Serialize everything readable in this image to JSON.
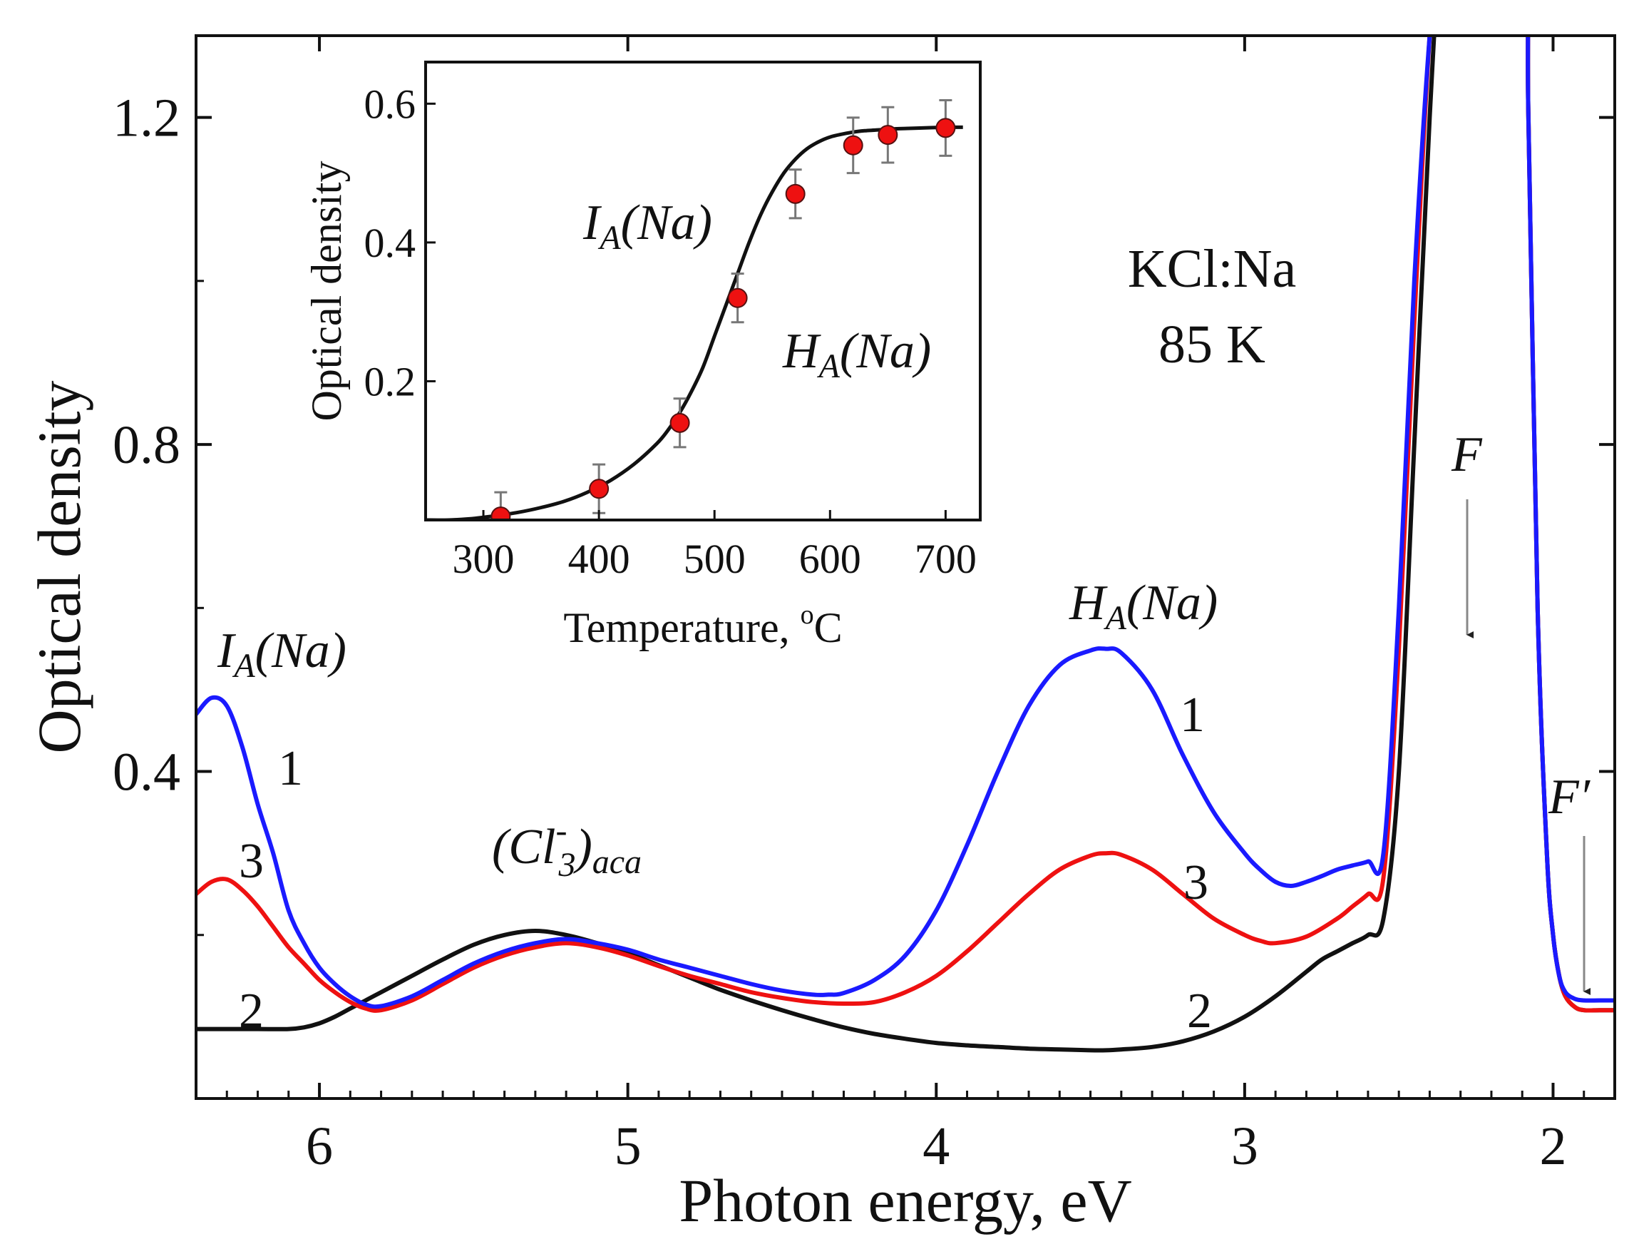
{
  "chart_data": [
    {
      "type": "line",
      "xlabel": "Photon energy, eV",
      "ylabel": "Optical density",
      "xlim": [
        6.4,
        1.8
      ],
      "ylim": [
        0.0,
        1.3
      ],
      "x_reversed": true,
      "x_ticks": [
        6,
        5,
        4,
        3,
        2
      ],
      "x_tick_labels": [
        "6",
        "5",
        "4",
        "3",
        "2"
      ],
      "y_ticks": [
        0.4,
        0.8,
        1.2
      ],
      "y_tick_labels": [
        "0.4",
        "0.8",
        "1.2"
      ],
      "sample_label": [
        "KCl:Na",
        "85 K"
      ],
      "series": [
        {
          "name": "1",
          "color": "#1a1aff",
          "x": [
            6.4,
            6.35,
            6.3,
            6.25,
            6.2,
            6.15,
            6.1,
            6.05,
            6.0,
            5.95,
            5.9,
            5.85,
            5.8,
            5.7,
            5.6,
            5.5,
            5.4,
            5.3,
            5.2,
            5.1,
            5.0,
            4.9,
            4.8,
            4.7,
            4.6,
            4.5,
            4.4,
            4.35,
            4.3,
            4.2,
            4.1,
            4.0,
            3.9,
            3.8,
            3.7,
            3.6,
            3.5,
            3.45,
            3.4,
            3.3,
            3.2,
            3.1,
            3.0,
            2.95,
            2.9,
            2.85,
            2.8,
            2.75,
            2.7,
            2.65,
            2.6,
            2.55,
            2.5,
            2.45,
            2.4,
            2.36,
            2.33,
            2.3,
            2.1,
            2.08,
            2.05,
            2.02,
            2.0,
            1.98,
            1.96,
            1.93,
            1.9,
            1.85,
            1.8
          ],
          "y": [
            0.47,
            0.49,
            0.48,
            0.43,
            0.36,
            0.3,
            0.23,
            0.19,
            0.16,
            0.14,
            0.125,
            0.115,
            0.113,
            0.125,
            0.145,
            0.165,
            0.18,
            0.19,
            0.195,
            0.19,
            0.182,
            0.17,
            0.16,
            0.15,
            0.14,
            0.132,
            0.127,
            0.127,
            0.129,
            0.145,
            0.175,
            0.23,
            0.31,
            0.4,
            0.48,
            0.53,
            0.548,
            0.55,
            0.545,
            0.5,
            0.42,
            0.35,
            0.3,
            0.28,
            0.265,
            0.26,
            0.265,
            0.272,
            0.28,
            0.285,
            0.29,
            0.3,
            0.6,
            1.0,
            1.3,
            1.45,
            1.5,
            1.5,
            1.5,
            1.2,
            0.6,
            0.3,
            0.2,
            0.15,
            0.13,
            0.122,
            0.12,
            0.12,
            0.12
          ]
        },
        {
          "name": "2",
          "color": "#111111",
          "x": [
            6.4,
            6.3,
            6.2,
            6.1,
            6.05,
            6.0,
            5.95,
            5.9,
            5.85,
            5.8,
            5.7,
            5.6,
            5.5,
            5.4,
            5.3,
            5.2,
            5.1,
            5.0,
            4.9,
            4.8,
            4.7,
            4.6,
            4.5,
            4.4,
            4.3,
            4.2,
            4.1,
            4.0,
            3.9,
            3.8,
            3.7,
            3.6,
            3.5,
            3.45,
            3.4,
            3.3,
            3.2,
            3.1,
            3.0,
            2.9,
            2.8,
            2.75,
            2.7,
            2.65,
            2.6,
            2.55,
            2.5,
            2.45,
            2.4,
            2.36,
            2.33,
            2.3,
            2.1,
            2.08,
            2.05,
            2.02,
            2.0,
            1.98,
            1.96,
            1.93,
            1.9,
            1.85,
            1.8
          ],
          "y": [
            0.085,
            0.085,
            0.085,
            0.085,
            0.087,
            0.092,
            0.1,
            0.11,
            0.12,
            0.13,
            0.15,
            0.17,
            0.188,
            0.2,
            0.205,
            0.2,
            0.19,
            0.178,
            0.163,
            0.148,
            0.133,
            0.12,
            0.108,
            0.097,
            0.087,
            0.079,
            0.073,
            0.068,
            0.065,
            0.063,
            0.061,
            0.06,
            0.059,
            0.059,
            0.06,
            0.063,
            0.07,
            0.082,
            0.1,
            0.125,
            0.155,
            0.17,
            0.18,
            0.19,
            0.2,
            0.22,
            0.4,
            0.8,
            1.2,
            1.45,
            1.5,
            1.5,
            1.5,
            1.2,
            0.6,
            0.3,
            0.2,
            0.15,
            0.125,
            0.112,
            0.108,
            0.108,
            0.108
          ]
        },
        {
          "name": "3",
          "color": "#ee1111",
          "x": [
            6.4,
            6.35,
            6.3,
            6.25,
            6.2,
            6.15,
            6.1,
            6.05,
            6.0,
            5.95,
            5.9,
            5.85,
            5.8,
            5.7,
            5.6,
            5.5,
            5.4,
            5.3,
            5.2,
            5.1,
            5.0,
            4.9,
            4.8,
            4.7,
            4.6,
            4.5,
            4.4,
            4.3,
            4.2,
            4.1,
            4.0,
            3.9,
            3.8,
            3.7,
            3.6,
            3.5,
            3.45,
            3.4,
            3.3,
            3.2,
            3.1,
            3.0,
            2.95,
            2.9,
            2.8,
            2.7,
            2.65,
            2.6,
            2.55,
            2.5,
            2.45,
            2.4,
            2.36,
            2.33,
            2.3,
            2.1,
            2.08,
            2.05,
            2.02,
            2.0,
            1.98,
            1.96,
            1.93,
            1.9,
            1.85,
            1.8
          ],
          "y": [
            0.25,
            0.265,
            0.268,
            0.255,
            0.235,
            0.21,
            0.185,
            0.165,
            0.145,
            0.13,
            0.118,
            0.11,
            0.108,
            0.12,
            0.14,
            0.16,
            0.175,
            0.185,
            0.19,
            0.185,
            0.175,
            0.162,
            0.15,
            0.14,
            0.13,
            0.123,
            0.118,
            0.116,
            0.118,
            0.13,
            0.15,
            0.18,
            0.215,
            0.25,
            0.28,
            0.297,
            0.3,
            0.298,
            0.28,
            0.25,
            0.22,
            0.2,
            0.193,
            0.19,
            0.198,
            0.22,
            0.235,
            0.25,
            0.27,
            0.55,
            0.95,
            1.3,
            1.45,
            1.5,
            1.5,
            1.5,
            1.2,
            0.6,
            0.3,
            0.2,
            0.15,
            0.125,
            0.112,
            0.108,
            0.108,
            0.108
          ]
        }
      ],
      "annotations": [
        {
          "id": "ia",
          "main": "I",
          "sub": "A",
          "tail": "(Na)"
        },
        {
          "id": "ha",
          "main": "H",
          "sub": "A",
          "tail": "(Na)"
        },
        {
          "id": "cl3",
          "main": "(Cl",
          "sup": "-",
          "sub": "3",
          "tail": ")",
          "sub2": "aca"
        },
        {
          "id": "f",
          "text": "F"
        },
        {
          "id": "fprime",
          "text": "F′"
        }
      ],
      "curve_labels": [
        "1",
        "3",
        "2",
        "1",
        "3",
        "2"
      ]
    },
    {
      "type": "scatter",
      "xlabel": "Temperature, ",
      "xlabel_sup": "o",
      "xlabel_tail": "C",
      "ylabel": "Optical density",
      "xlim": [
        250,
        730
      ],
      "ylim": [
        0.0,
        0.66
      ],
      "x_ticks": [
        300,
        400,
        500,
        600,
        700
      ],
      "x_tick_labels": [
        "300",
        "400",
        "500",
        "600",
        "700"
      ],
      "y_ticks": [
        0.2,
        0.4,
        0.6
      ],
      "y_tick_labels": [
        "0.2",
        "0.4",
        "0.6"
      ],
      "points": {
        "x": [
          315,
          400,
          470,
          520,
          570,
          620,
          650,
          700
        ],
        "y": [
          0.005,
          0.045,
          0.14,
          0.32,
          0.47,
          0.54,
          0.555,
          0.565
        ],
        "err": [
          0.035,
          0.035,
          0.035,
          0.035,
          0.035,
          0.04,
          0.04,
          0.04
        ],
        "color": "#ee1111"
      },
      "fit": {
        "name": "fit",
        "color": "#111111",
        "x": [
          250,
          270,
          290,
          310,
          330,
          350,
          370,
          390,
          410,
          430,
          450,
          460,
          470,
          480,
          490,
          500,
          510,
          520,
          530,
          540,
          550,
          560,
          570,
          580,
          590,
          600,
          610,
          620,
          630,
          640,
          650,
          660,
          680,
          700,
          715
        ],
        "y": [
          0.0,
          0.0,
          0.002,
          0.006,
          0.011,
          0.018,
          0.027,
          0.04,
          0.057,
          0.08,
          0.11,
          0.13,
          0.155,
          0.185,
          0.22,
          0.265,
          0.31,
          0.355,
          0.4,
          0.44,
          0.473,
          0.5,
          0.52,
          0.535,
          0.545,
          0.552,
          0.556,
          0.559,
          0.561,
          0.562,
          0.563,
          0.564,
          0.565,
          0.566,
          0.566
        ]
      },
      "annotations": [
        {
          "id": "inset-ia",
          "main": "I",
          "sub": "A",
          "tail": "(Na)"
        },
        {
          "id": "inset-ha",
          "main": "H",
          "sub": "A",
          "tail": "(Na)"
        }
      ]
    }
  ]
}
